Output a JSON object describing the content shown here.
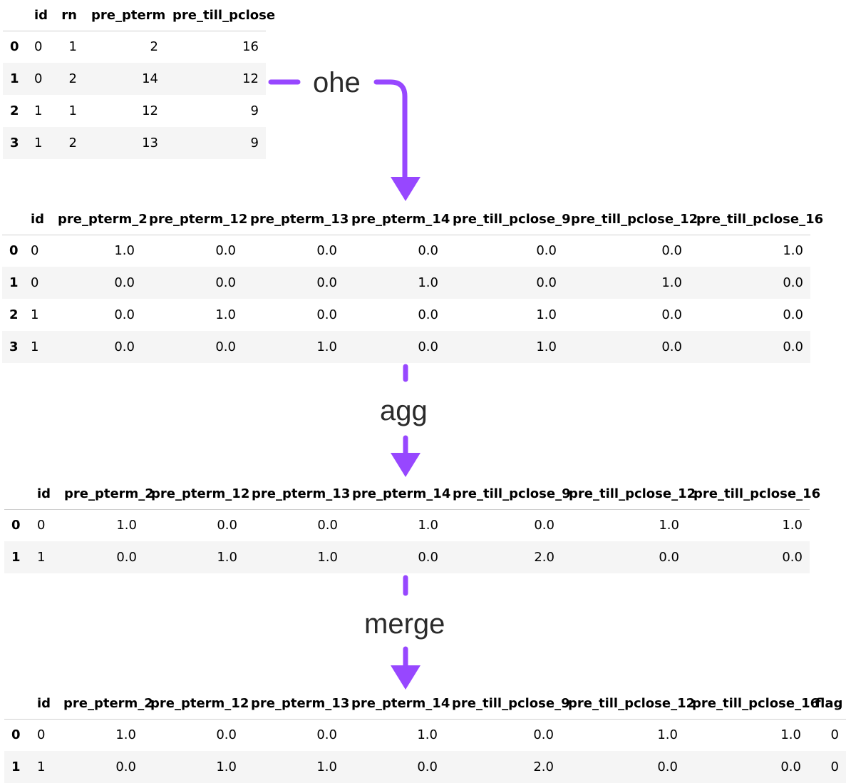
{
  "table1": {
    "columns": [
      "id",
      "rn",
      "pre_pterm",
      "pre_till_pclose"
    ],
    "rows": [
      {
        "index": "0",
        "cells": [
          "0",
          "1",
          "2",
          "16"
        ]
      },
      {
        "index": "1",
        "cells": [
          "0",
          "2",
          "14",
          "12"
        ]
      },
      {
        "index": "2",
        "cells": [
          "1",
          "1",
          "12",
          "9"
        ]
      },
      {
        "index": "3",
        "cells": [
          "1",
          "2",
          "13",
          "9"
        ]
      }
    ]
  },
  "table2": {
    "columns": [
      "id",
      "pre_pterm_2",
      "pre_pterm_12",
      "pre_pterm_13",
      "pre_pterm_14",
      "pre_till_pclose_9",
      "pre_till_pclose_12",
      "pre_till_pclose_16"
    ],
    "rows": [
      {
        "index": "0",
        "cells": [
          "0",
          "1.0",
          "0.0",
          "0.0",
          "0.0",
          "0.0",
          "0.0",
          "1.0"
        ]
      },
      {
        "index": "1",
        "cells": [
          "0",
          "0.0",
          "0.0",
          "0.0",
          "1.0",
          "0.0",
          "1.0",
          "0.0"
        ]
      },
      {
        "index": "2",
        "cells": [
          "1",
          "0.0",
          "1.0",
          "0.0",
          "0.0",
          "1.0",
          "0.0",
          "0.0"
        ]
      },
      {
        "index": "3",
        "cells": [
          "1",
          "0.0",
          "0.0",
          "1.0",
          "0.0",
          "1.0",
          "0.0",
          "0.0"
        ]
      }
    ]
  },
  "table3": {
    "columns": [
      "id",
      "pre_pterm_2",
      "pre_pterm_12",
      "pre_pterm_13",
      "pre_pterm_14",
      "pre_till_pclose_9",
      "pre_till_pclose_12",
      "pre_till_pclose_16"
    ],
    "rows": [
      {
        "index": "0",
        "cells": [
          "0",
          "1.0",
          "0.0",
          "0.0",
          "1.0",
          "0.0",
          "1.0",
          "1.0"
        ]
      },
      {
        "index": "1",
        "cells": [
          "1",
          "0.0",
          "1.0",
          "1.0",
          "0.0",
          "2.0",
          "0.0",
          "0.0"
        ]
      }
    ]
  },
  "table4": {
    "columns": [
      "id",
      "pre_pterm_2",
      "pre_pterm_12",
      "pre_pterm_13",
      "pre_pterm_14",
      "pre_till_pclose_9",
      "pre_till_pclose_12",
      "pre_till_pclose_16",
      "flag"
    ],
    "rows": [
      {
        "index": "0",
        "cells": [
          "0",
          "1.0",
          "0.0",
          "0.0",
          "1.0",
          "0.0",
          "1.0",
          "1.0",
          "0"
        ]
      },
      {
        "index": "1",
        "cells": [
          "1",
          "0.0",
          "1.0",
          "1.0",
          "0.0",
          "2.0",
          "0.0",
          "0.0",
          "0"
        ]
      }
    ]
  },
  "steps": {
    "ohe": "ohe",
    "agg": "agg",
    "merge": "merge"
  },
  "colors": {
    "arrow": "#9747ff",
    "label": "#2b2b2b",
    "row_stripe": "#f5f5f5",
    "header_rule": "#cfcfcf"
  }
}
